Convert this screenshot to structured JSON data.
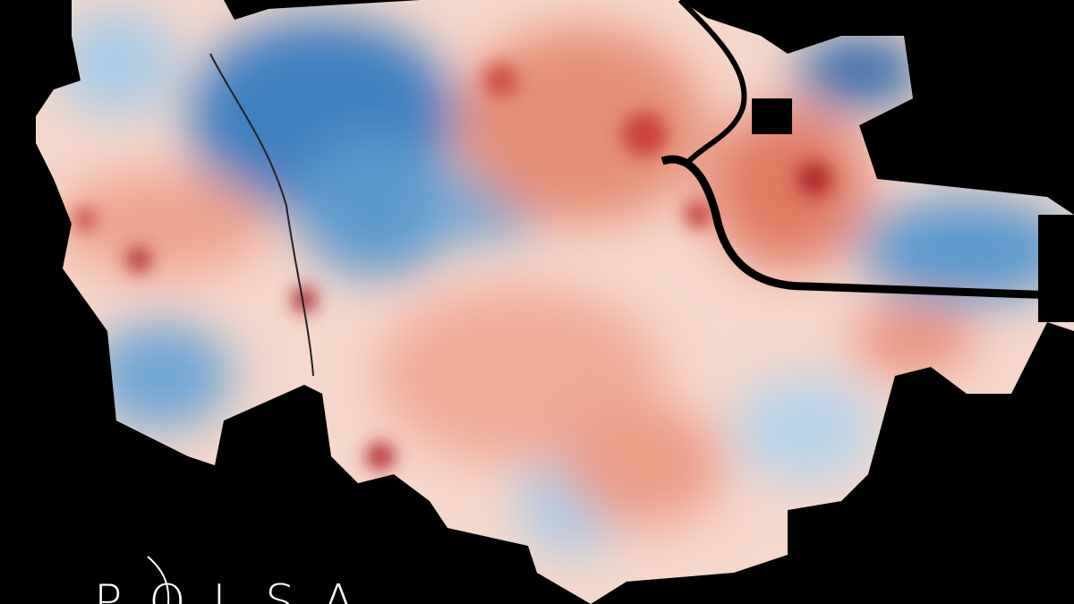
{
  "logo": {
    "text": "POLSA"
  }
}
